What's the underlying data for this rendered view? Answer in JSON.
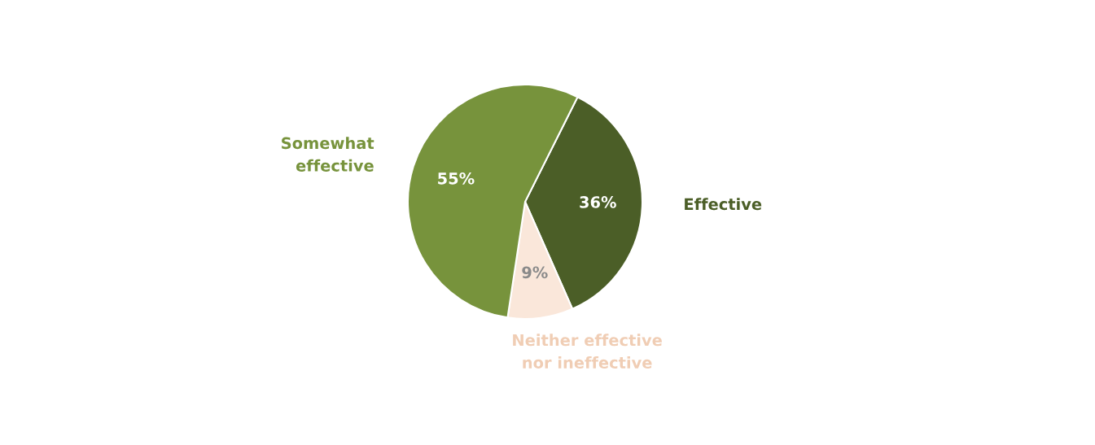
{
  "chart_data": {
    "type": "pie",
    "categories": [
      "Effective",
      "Neither effective\nnor ineffective",
      "Somewhat\neffective"
    ],
    "values": [
      36,
      9,
      55
    ],
    "colors": [
      "#4b5e27",
      "#fae7da",
      "#77933c"
    ],
    "value_labels": [
      "36%",
      "9%",
      "55%"
    ]
  }
}
